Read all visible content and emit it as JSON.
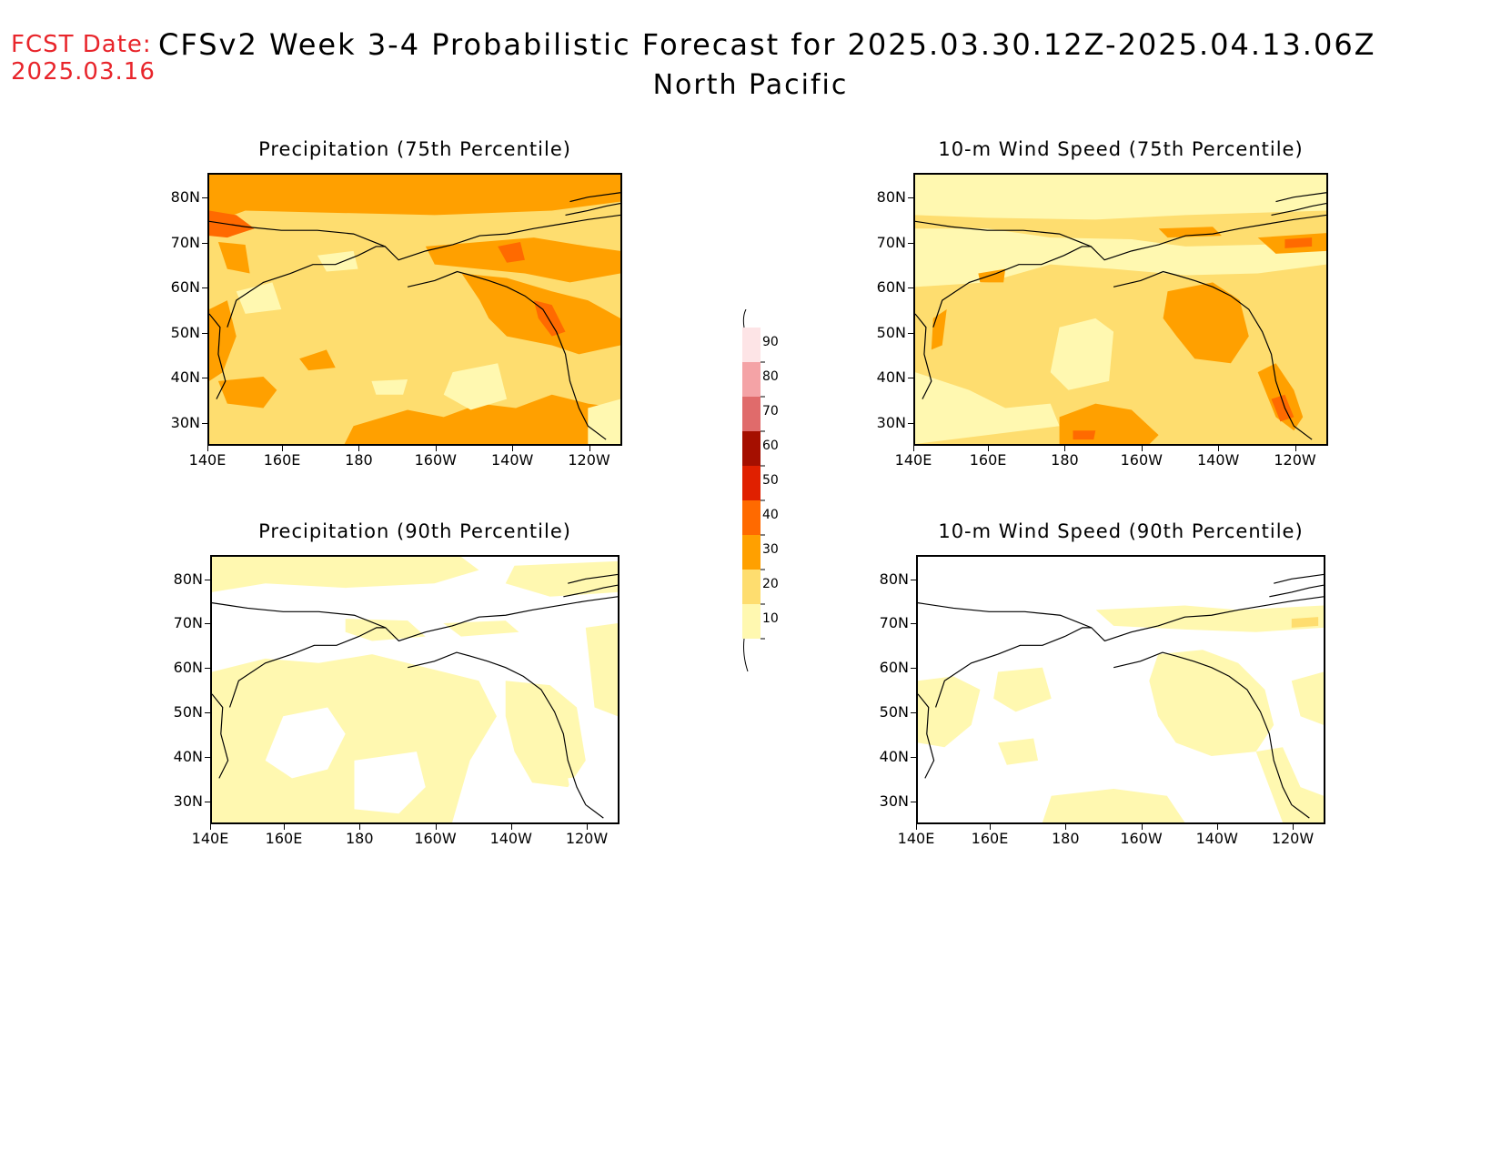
{
  "header": {
    "fcst_label": "FCST Date:",
    "fcst_date": "2025.03.16",
    "title": "CFSv2 Week 3-4 Probabilistic Forecast for 2025.03.30.12Z-2025.04.13.06Z",
    "region": "North Pacific"
  },
  "axes": {
    "lat_labels": [
      "80N",
      "70N",
      "60N",
      "50N",
      "40N",
      "30N"
    ],
    "lon_labels": [
      "140E",
      "160E",
      "180",
      "160W",
      "140W",
      "120W"
    ]
  },
  "panels": [
    {
      "id": "precip75",
      "title": "Precipitation (75th Percentile)"
    },
    {
      "id": "wind75",
      "title": "10-m Wind Speed (75th Percentile)"
    },
    {
      "id": "precip90",
      "title": "Precipitation (90th Percentile)"
    },
    {
      "id": "wind90",
      "title": "10-m Wind Speed (90th Percentile)"
    }
  ],
  "colorbar": {
    "levels": [
      "90",
      "80",
      "70",
      "60",
      "50",
      "40",
      "30",
      "20",
      "10"
    ],
    "colors": [
      "#fde4e6",
      "#f4a3a6",
      "#e06b6b",
      "#a50f00",
      "#e02000",
      "#ff6a00",
      "#ffa000",
      "#fedd6f",
      "#fff8b0"
    ]
  },
  "palette": {
    "c10": "#fff8b0",
    "c20": "#fedd6f",
    "c30": "#ffa000",
    "c40": "#ff6a00",
    "title_red": "#e8252b"
  }
}
